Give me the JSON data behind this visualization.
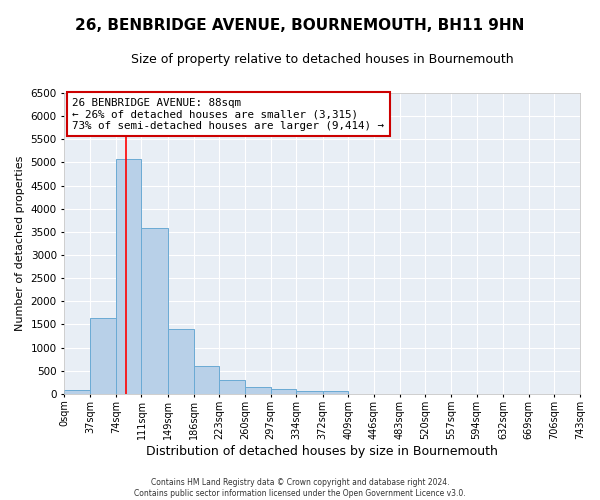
{
  "title": "26, BENBRIDGE AVENUE, BOURNEMOUTH, BH11 9HN",
  "subtitle": "Size of property relative to detached houses in Bournemouth",
  "xlabel": "Distribution of detached houses by size in Bournemouth",
  "ylabel": "Number of detached properties",
  "bin_edges": [
    0,
    37,
    74,
    111,
    149,
    186,
    223,
    260,
    297,
    334,
    372,
    409,
    446,
    483,
    520,
    557,
    594,
    632,
    669,
    706,
    743
  ],
  "bin_labels": [
    "0sqm",
    "37sqm",
    "74sqm",
    "111sqm",
    "149sqm",
    "186sqm",
    "223sqm",
    "260sqm",
    "297sqm",
    "334sqm",
    "372sqm",
    "409sqm",
    "446sqm",
    "483sqm",
    "520sqm",
    "557sqm",
    "594sqm",
    "632sqm",
    "669sqm",
    "706sqm",
    "743sqm"
  ],
  "bar_heights": [
    75,
    1650,
    5075,
    3590,
    1395,
    610,
    300,
    155,
    110,
    65,
    55,
    0,
    0,
    0,
    0,
    0,
    0,
    0,
    0,
    0
  ],
  "bar_color": "#b8d0e8",
  "bar_edge_color": "#6aaad4",
  "ylim": [
    0,
    6500
  ],
  "yticks": [
    0,
    500,
    1000,
    1500,
    2000,
    2500,
    3000,
    3500,
    4000,
    4500,
    5000,
    5500,
    6000,
    6500
  ],
  "red_line_x": 88,
  "annotation_title": "26 BENBRIDGE AVENUE: 88sqm",
  "annotation_line1": "← 26% of detached houses are smaller (3,315)",
  "annotation_line2": "73% of semi-detached houses are larger (9,414) →",
  "annotation_box_color": "#ffffff",
  "annotation_box_edge": "#cc0000",
  "fig_bg_color": "#ffffff",
  "plot_bg_color": "#e8eef5",
  "grid_color": "#ffffff",
  "footer_line1": "Contains HM Land Registry data © Crown copyright and database right 2024.",
  "footer_line2": "Contains public sector information licensed under the Open Government Licence v3.0."
}
